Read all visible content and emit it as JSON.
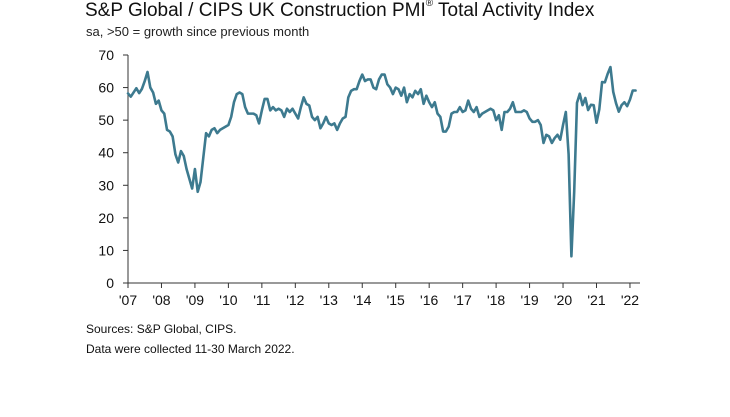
{
  "chart_title": "S&P Global / CIPS UK Construction PMI",
  "chart_title_mark": "®",
  "chart_title_suffix": " Total Activity Index",
  "subtitle": "sa, >50 = growth since previous month",
  "sources": "Sources: S&P Global, CIPS.",
  "note": "Data were collected 11-30 March 2022.",
  "colors": {
    "line": "#3d7a8f",
    "axis": "#333333",
    "background": "#ffffff"
  },
  "chart_data": {
    "type": "line",
    "title": "S&P Global / CIPS UK Construction PMI® Total Activity Index",
    "ylabel": "sa, >50 = growth since previous month",
    "xlabel": "",
    "ylim": [
      0,
      70
    ],
    "yticks": [
      0,
      10,
      20,
      30,
      40,
      50,
      60,
      70
    ],
    "xlim": [
      2007.0,
      2022.3
    ],
    "xticks": [
      {
        "label": "'07",
        "x": 2007
      },
      {
        "label": "'08",
        "x": 2008
      },
      {
        "label": "'09",
        "x": 2009
      },
      {
        "label": "'10",
        "x": 2010
      },
      {
        "label": "'11",
        "x": 2011
      },
      {
        "label": "'12",
        "x": 2012
      },
      {
        "label": "'13",
        "x": 2013
      },
      {
        "label": "'14",
        "x": 2014
      },
      {
        "label": "'15",
        "x": 2015
      },
      {
        "label": "'16",
        "x": 2016
      },
      {
        "label": "'17",
        "x": 2017
      },
      {
        "label": "'18",
        "x": 2018
      },
      {
        "label": "'19",
        "x": 2019
      },
      {
        "label": "'20",
        "x": 2020
      },
      {
        "label": "'21",
        "x": 2021
      },
      {
        "label": "'22",
        "x": 2022
      }
    ],
    "grid": false,
    "series": [
      {
        "name": "UK Construction PMI Total Activity Index",
        "start": "2007-01",
        "frequency": "monthly",
        "values": [
          58.2,
          57.2,
          58.5,
          59.8,
          58.3,
          59.6,
          62.0,
          64.8,
          60.0,
          58.5,
          55.0,
          56.0,
          53.0,
          52.0,
          47.0,
          46.5,
          45.0,
          39.5,
          37.0,
          40.5,
          39.0,
          35.0,
          32.0,
          29.0,
          35.0,
          28.0,
          31.0,
          38.5,
          46.0,
          45.0,
          47.0,
          47.5,
          46.0,
          47.0,
          47.5,
          48.0,
          48.5,
          51.0,
          55.5,
          58.0,
          58.5,
          58.0,
          54.0,
          52.0,
          52.0,
          52.0,
          51.5,
          49.0,
          53.0,
          56.5,
          56.5,
          53.0,
          54.0,
          53.0,
          53.5,
          53.0,
          51.0,
          53.5,
          52.5,
          53.5,
          52.0,
          50.5,
          54.0,
          57.0,
          55.0,
          54.5,
          51.0,
          50.0,
          51.0,
          47.5,
          49.0,
          51.0,
          49.0,
          48.5,
          49.0,
          47.0,
          49.0,
          50.5,
          51.0,
          57.0,
          59.0,
          59.5,
          59.5,
          62.0,
          64.0,
          62.0,
          62.5,
          62.5,
          60.0,
          59.5,
          62.5,
          64.0,
          64.0,
          61.0,
          60.0,
          58.0,
          60.0,
          59.5,
          57.5,
          60.0,
          55.5,
          58.0,
          57.0,
          59.0,
          58.0,
          59.5,
          55.0,
          57.5,
          55.5,
          54.0,
          55.5,
          52.0,
          51.0,
          46.5,
          46.5,
          48.0,
          52.0,
          52.5,
          52.5,
          54.0,
          52.5,
          53.0,
          56.0,
          53.5,
          52.5,
          54.0,
          51.0,
          52.0,
          52.5,
          53.0,
          53.5,
          53.0,
          50.0,
          51.5,
          47.0,
          52.5,
          52.5,
          53.5,
          55.5,
          52.5,
          52.5,
          52.5,
          53.0,
          52.5,
          50.5,
          49.5,
          49.5,
          50.0,
          48.5,
          43.0,
          45.5,
          45.0,
          43.0,
          44.5,
          45.5,
          44.0,
          48.5,
          52.5,
          39.5,
          8.2,
          28.0,
          55.3,
          58.1,
          54.6,
          56.8,
          53.1,
          54.7,
          54.6,
          49.2,
          53.3,
          61.7,
          61.6,
          64.2,
          66.3,
          58.7,
          55.2,
          52.6,
          54.6,
          55.5,
          54.3,
          56.3,
          59.1,
          59.1
        ]
      }
    ]
  }
}
